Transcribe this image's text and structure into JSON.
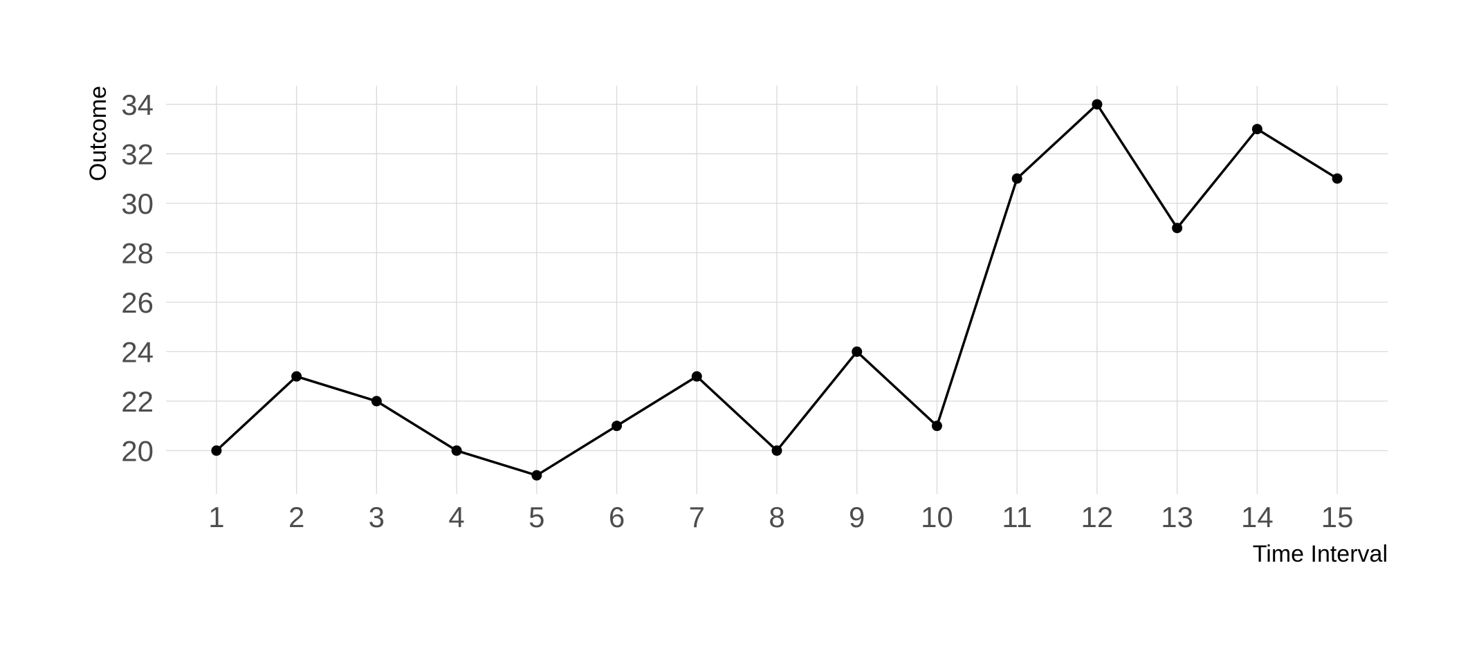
{
  "chart_data": {
    "type": "line",
    "xlabel": "Time Interval",
    "ylabel": "Outcome",
    "x": [
      1,
      2,
      3,
      4,
      5,
      6,
      7,
      8,
      9,
      10,
      11,
      12,
      13,
      14,
      15
    ],
    "series": [
      {
        "values": [
          20,
          23,
          22,
          20,
          19,
          21,
          23,
          20,
          24,
          21,
          31,
          34,
          29,
          33,
          31
        ]
      }
    ],
    "xticks": [
      "1",
      "2",
      "3",
      "4",
      "5",
      "6",
      "7",
      "8",
      "9",
      "10",
      "11",
      "12",
      "13",
      "14",
      "15"
    ],
    "yticks": [
      "20",
      "22",
      "24",
      "26",
      "28",
      "30",
      "32",
      "34"
    ],
    "xlim": [
      0.37,
      15.63
    ],
    "ylim": [
      18.25,
      34.75
    ],
    "grid": true,
    "colors": {
      "line": "#000000",
      "grid": "#d9d9d9",
      "tick_text": "#4d4d4d",
      "background": "#ffffff"
    }
  }
}
